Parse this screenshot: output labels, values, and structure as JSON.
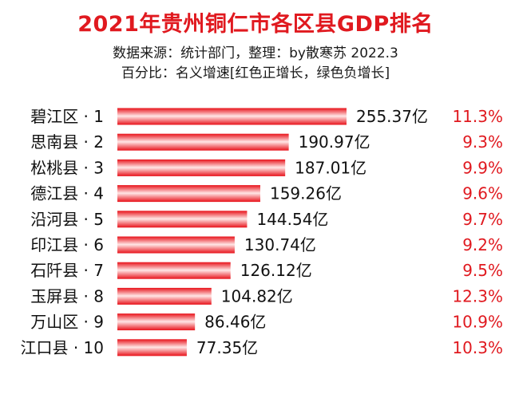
{
  "chart_data": {
    "type": "bar",
    "orientation": "horizontal",
    "title": "2021年贵州铜仁市各区县GDP排名",
    "subtitle_lines": [
      "数据来源：统计部门，整理：by散寒苏 2022.3",
      "百分比：名义增速[红色正增长，绿色负增长]"
    ],
    "categories": [
      "碧江区 · 1",
      "思南县 · 2",
      "松桃县 · 3",
      "德江县 · 4",
      "沿河县 · 5",
      "印江县 · 6",
      "石阡县 · 7",
      "玉屏县 · 8",
      "万山区 · 9",
      "江口县 · 10"
    ],
    "values": [
      255.37,
      190.97,
      187.01,
      159.26,
      144.54,
      130.74,
      126.12,
      104.82,
      86.46,
      77.35
    ],
    "value_labels": [
      "255.37亿",
      "190.97亿",
      "187.01亿",
      "159.26亿",
      "144.54亿",
      "130.74亿",
      "126.12亿",
      "104.82亿",
      "86.46亿",
      "77.35亿"
    ],
    "growth_labels": [
      "11.3%",
      "9.3%",
      "9.9%",
      "9.6%",
      "9.7%",
      "9.2%",
      "9.5%",
      "12.3%",
      "10.9%",
      "10.3%"
    ],
    "xlim": [
      0,
      255.37
    ],
    "grid": false,
    "legend": "none",
    "colors": {
      "bar_edge": "#e8121a",
      "bar_center": "#ffe6e6",
      "positive_growth": "#e0191f",
      "negative_growth": "#1a9a2a"
    }
  }
}
